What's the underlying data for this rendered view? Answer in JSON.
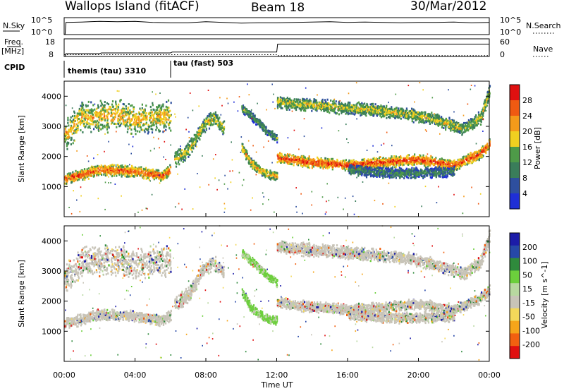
{
  "header": {
    "station": "Wallops Island (fitACF)",
    "beam": "Beam 18",
    "date": "30/Mar/2012"
  },
  "side_labels": {
    "nsky": "N.Sky",
    "nsearch": "N.Search",
    "freq": "Freq.",
    "freq_unit": "[MHz]",
    "nave": "Nave",
    "cpid": "CPID"
  },
  "cpid_segments": [
    {
      "label": "themis (tau) 3310",
      "start_hour": 0,
      "end_hour": 6
    },
    {
      "label": "tau (fast) 503",
      "start_hour": 6,
      "end_hour": 24
    }
  ],
  "colors": {
    "power": [
      "#1f2fd6",
      "#2e4f9e",
      "#3a7d5a",
      "#4e9a48",
      "#f0d020",
      "#f49a1a",
      "#ef5a12",
      "#e01010"
    ],
    "velocity": [
      "#e01010",
      "#f26010",
      "#f6a51a",
      "#f3d85a",
      "#c8c4b8",
      "#b8d8a0",
      "#6ccf3c",
      "#2f8a3c",
      "#2648a8",
      "#1c1ca8"
    ],
    "axis": "#000000"
  },
  "chart_data": [
    {
      "id": "nsky_nsearch",
      "type": "line",
      "ylabel": "N.Sky",
      "ylabel_right": "N.Search",
      "ytick_labels": [
        "10^5",
        "10^0"
      ],
      "ytick_labels_right": [
        "10^5",
        "10^0"
      ],
      "note": "",
      "series": [
        {
          "x": [
            0,
            0.05,
            0.1,
            1,
            2,
            3,
            4,
            5,
            6,
            7,
            8,
            9,
            10,
            11,
            12,
            13,
            14,
            15,
            16,
            17,
            18,
            19,
            20,
            21,
            22,
            23,
            24
          ],
          "log_y": [
            0,
            0,
            3.6,
            3.7,
            3.9,
            3.8,
            3.9,
            3.6,
            3.5,
            3.5,
            3.8,
            3.6,
            3.4,
            3.5,
            3.5,
            3.6,
            3.7,
            3.8,
            3.6,
            3.7,
            3.6,
            3.5,
            3.6,
            3.6,
            3.7,
            3.5,
            3.6
          ]
        }
      ],
      "ylim_log": [
        0,
        5
      ]
    },
    {
      "id": "freq_nave",
      "type": "line",
      "ylabel": "Freq.",
      "ytick_labels": [
        "18",
        "8"
      ],
      "ytick_labels_right": [
        "60",
        "0"
      ],
      "ylim": [
        8,
        18
      ],
      "ylim_right": [
        0,
        60
      ],
      "series": [
        {
          "x": [
            0,
            0.05,
            0.1,
            2,
            2.1,
            6,
            6.1,
            12,
            12.05,
            24
          ],
          "y": [
            8,
            8,
            9.6,
            9.6,
            10.0,
            10.0,
            10.5,
            10.5,
            15.0,
            15.0
          ]
        },
        {
          "x": [
            0,
            12,
            12.05,
            24
          ],
          "y": [
            6,
            6,
            3,
            3
          ]
        }
      ]
    },
    {
      "id": "power",
      "type": "heatmap",
      "ylabel": "Slant Range [km]",
      "ytick_labels": [
        "1000",
        "2000",
        "3000",
        "4000"
      ],
      "ylim": [
        0,
        4500
      ],
      "xlim": [
        0,
        24
      ],
      "colorbar_label": "Power [dB]",
      "colorbar_ticks": [
        "4",
        "8",
        "12",
        "16",
        "20",
        "24",
        "28"
      ],
      "colorbar_range": [
        0,
        32
      ],
      "bands": [
        {
          "hours": [
            0,
            2,
            4,
            5.5,
            6
          ],
          "ranges": [
            1250,
            1550,
            1500,
            1350,
            1550
          ],
          "width": 260,
          "level": 0.85
        },
        {
          "hours": [
            0,
            1,
            2,
            3,
            4,
            5,
            6
          ],
          "ranges": [
            2700,
            3300,
            3300,
            3400,
            3200,
            3300,
            3350
          ],
          "width": 700,
          "level": 0.65
        },
        {
          "hours": [
            6.2,
            7,
            7.8,
            8.4,
            9.0
          ],
          "ranges": [
            1900,
            2200,
            3000,
            3300,
            2900
          ],
          "width": 350,
          "level": 0.55
        },
        {
          "hours": [
            10,
            10.5,
            11,
            11.5,
            12
          ],
          "ranges": [
            2300,
            1800,
            1550,
            1400,
            1350
          ],
          "width": 220,
          "level": 0.65
        },
        {
          "hours": [
            10,
            10.8,
            11.5,
            12
          ],
          "ranges": [
            3600,
            3200,
            2800,
            2600
          ],
          "width": 200,
          "level": 0.4
        },
        {
          "hours": [
            12,
            14,
            16,
            18,
            20,
            22,
            23.5,
            24
          ],
          "ranges": [
            1950,
            1800,
            1700,
            1800,
            1900,
            1700,
            2100,
            2400
          ],
          "width": 250,
          "level": 0.9
        },
        {
          "hours": [
            12,
            14,
            16,
            18,
            19.5,
            21,
            22.5,
            23.5,
            24
          ],
          "ranges": [
            3800,
            3700,
            3600,
            3500,
            3400,
            3200,
            2900,
            3300,
            4200
          ],
          "width": 300,
          "level": 0.55
        },
        {
          "hours": [
            16,
            18,
            20,
            22
          ],
          "ranges": [
            1550,
            1450,
            1450,
            1500
          ],
          "width": 250,
          "level": 0.35
        }
      ]
    },
    {
      "id": "velocity",
      "type": "heatmap",
      "ylabel": "Slant Range [km]",
      "ytick_labels": [
        "1000",
        "2000",
        "3000",
        "4000"
      ],
      "ylim": [
        0,
        4500
      ],
      "xlim": [
        0,
        24
      ],
      "xtick_labels": [
        "00:00",
        "04:00",
        "08:00",
        "12:00",
        "16:00",
        "20:00",
        "00:00"
      ],
      "xtick_hours": [
        0,
        4,
        8,
        12,
        16,
        20,
        24
      ],
      "xlabel": "Time UT",
      "colorbar_label": "Velocity [m s^-1]",
      "colorbar_ticks": [
        "-200",
        "-100",
        "-50",
        "-15",
        "15",
        "50",
        "100",
        "200"
      ],
      "bands": [
        {
          "hours": [
            0,
            2,
            4,
            5.5,
            6
          ],
          "ranges": [
            1250,
            1550,
            1500,
            1350,
            1550
          ],
          "width": 260,
          "level": 0.5
        },
        {
          "hours": [
            0,
            1,
            2,
            3,
            4,
            5,
            6
          ],
          "ranges": [
            2700,
            3300,
            3300,
            3400,
            3200,
            3300,
            3350
          ],
          "width": 700,
          "level": 0.5
        },
        {
          "hours": [
            6.2,
            7,
            7.8,
            8.4,
            9.0
          ],
          "ranges": [
            1900,
            2200,
            3000,
            3300,
            2900
          ],
          "width": 350,
          "level": 0.5
        },
        {
          "hours": [
            10,
            10.5,
            11,
            11.5,
            12
          ],
          "ranges": [
            2300,
            1800,
            1550,
            1400,
            1350
          ],
          "width": 220,
          "level": 0.65
        },
        {
          "hours": [
            10,
            10.8,
            11.5,
            12
          ],
          "ranges": [
            3600,
            3200,
            2800,
            2600
          ],
          "width": 200,
          "level": 0.65
        },
        {
          "hours": [
            12,
            14,
            16,
            18,
            20,
            22,
            23.5,
            24
          ],
          "ranges": [
            1950,
            1800,
            1700,
            1800,
            1900,
            1700,
            2100,
            2400
          ],
          "width": 250,
          "level": 0.5
        },
        {
          "hours": [
            12,
            14,
            16,
            18,
            19.5,
            21,
            22.5,
            23.5,
            24
          ],
          "ranges": [
            3800,
            3700,
            3600,
            3500,
            3400,
            3200,
            2900,
            3300,
            4200
          ],
          "width": 300,
          "level": 0.5
        },
        {
          "hours": [
            16,
            18,
            20,
            22
          ],
          "ranges": [
            1550,
            1450,
            1450,
            1500
          ],
          "width": 250,
          "level": 0.5
        }
      ]
    }
  ]
}
